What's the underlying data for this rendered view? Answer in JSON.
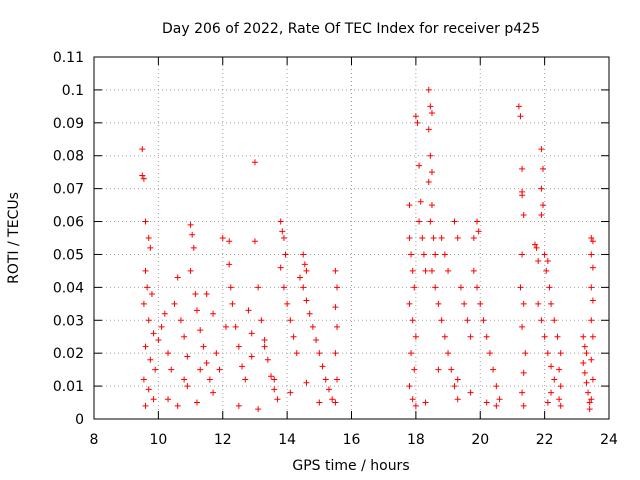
{
  "chart_data": {
    "type": "scatter",
    "title": "Day 206 of 2022, Rate Of TEC Index for receiver p425",
    "xlabel": "GPS time / hours",
    "ylabel": "ROTI / TECUs",
    "xlim": [
      8,
      24
    ],
    "ylim": [
      0,
      0.11
    ],
    "xticks": [
      8,
      10,
      12,
      14,
      16,
      18,
      20,
      22,
      24
    ],
    "xtick_labels": [
      "8",
      "10",
      "12",
      "14",
      "16",
      "18",
      "20",
      "22",
      "24"
    ],
    "yticks": [
      0,
      0.01,
      0.02,
      0.03,
      0.04,
      0.05,
      0.06,
      0.07,
      0.08,
      0.09,
      0.1,
      0.11
    ],
    "ytick_labels": [
      "0",
      "0.01",
      "0.02",
      "0.03",
      "0.04",
      "0.05",
      "0.06",
      "0.07",
      "0.08",
      "0.09",
      "0.1",
      "0.11"
    ],
    "grid": true,
    "marker": "+",
    "series": [
      {
        "name": "ROTI",
        "color": "#ff0000",
        "points": [
          [
            9.5,
            0.082
          ],
          [
            9.5,
            0.074
          ],
          [
            9.55,
            0.073
          ],
          [
            9.6,
            0.06
          ],
          [
            9.7,
            0.055
          ],
          [
            9.75,
            0.052
          ],
          [
            9.6,
            0.045
          ],
          [
            9.65,
            0.04
          ],
          [
            9.8,
            0.038
          ],
          [
            9.55,
            0.035
          ],
          [
            9.7,
            0.03
          ],
          [
            9.85,
            0.026
          ],
          [
            9.6,
            0.022
          ],
          [
            9.75,
            0.018
          ],
          [
            9.9,
            0.015
          ],
          [
            9.55,
            0.012
          ],
          [
            9.7,
            0.009
          ],
          [
            9.85,
            0.006
          ],
          [
            9.6,
            0.004
          ],
          [
            10.0,
            0.024
          ],
          [
            10.1,
            0.028
          ],
          [
            10.2,
            0.032
          ],
          [
            10.3,
            0.02
          ],
          [
            10.4,
            0.015
          ],
          [
            10.5,
            0.035
          ],
          [
            10.6,
            0.043
          ],
          [
            10.7,
            0.03
          ],
          [
            10.8,
            0.025
          ],
          [
            10.9,
            0.019
          ],
          [
            11.0,
            0.059
          ],
          [
            11.05,
            0.056
          ],
          [
            11.1,
            0.052
          ],
          [
            11.0,
            0.045
          ],
          [
            11.15,
            0.038
          ],
          [
            11.2,
            0.033
          ],
          [
            11.3,
            0.027
          ],
          [
            11.4,
            0.022
          ],
          [
            11.5,
            0.017
          ],
          [
            11.6,
            0.012
          ],
          [
            11.7,
            0.008
          ],
          [
            10.3,
            0.006
          ],
          [
            10.6,
            0.004
          ],
          [
            10.9,
            0.01
          ],
          [
            11.2,
            0.005
          ],
          [
            11.5,
            0.038
          ],
          [
            11.7,
            0.032
          ],
          [
            11.8,
            0.02
          ],
          [
            11.9,
            0.015
          ],
          [
            12.0,
            0.055
          ],
          [
            12.1,
            0.028
          ],
          [
            12.2,
            0.054
          ],
          [
            12.2,
            0.047
          ],
          [
            12.25,
            0.04
          ],
          [
            12.3,
            0.035
          ],
          [
            12.4,
            0.028
          ],
          [
            12.5,
            0.022
          ],
          [
            12.6,
            0.016
          ],
          [
            12.7,
            0.012
          ],
          [
            12.8,
            0.033
          ],
          [
            12.9,
            0.026
          ],
          [
            13.0,
            0.078
          ],
          [
            13.0,
            0.054
          ],
          [
            13.1,
            0.04
          ],
          [
            13.2,
            0.03
          ],
          [
            13.3,
            0.024
          ],
          [
            13.4,
            0.018
          ],
          [
            13.5,
            0.013
          ],
          [
            13.6,
            0.009
          ],
          [
            13.7,
            0.006
          ],
          [
            13.8,
            0.06
          ],
          [
            13.85,
            0.057
          ],
          [
            13.9,
            0.055
          ],
          [
            13.95,
            0.05
          ],
          [
            13.8,
            0.046
          ],
          [
            13.9,
            0.04
          ],
          [
            14.0,
            0.035
          ],
          [
            14.1,
            0.03
          ],
          [
            14.2,
            0.025
          ],
          [
            14.3,
            0.02
          ],
          [
            14.4,
            0.043
          ],
          [
            14.5,
            0.05
          ],
          [
            14.55,
            0.047
          ],
          [
            14.6,
            0.045
          ],
          [
            14.5,
            0.04
          ],
          [
            14.6,
            0.036
          ],
          [
            14.7,
            0.032
          ],
          [
            14.8,
            0.028
          ],
          [
            14.9,
            0.024
          ],
          [
            15.0,
            0.02
          ],
          [
            15.1,
            0.016
          ],
          [
            15.2,
            0.012
          ],
          [
            15.3,
            0.009
          ],
          [
            15.4,
            0.006
          ],
          [
            15.5,
            0.045
          ],
          [
            15.55,
            0.04
          ],
          [
            15.5,
            0.034
          ],
          [
            15.55,
            0.028
          ],
          [
            15.5,
            0.02
          ],
          [
            15.55,
            0.012
          ],
          [
            15.5,
            0.005
          ],
          [
            12.5,
            0.004
          ],
          [
            13.1,
            0.003
          ],
          [
            13.6,
            0.012
          ],
          [
            14.1,
            0.008
          ],
          [
            14.6,
            0.011
          ],
          [
            15.0,
            0.005
          ],
          [
            12.9,
            0.019
          ],
          [
            13.3,
            0.022
          ],
          [
            10.8,
            0.012
          ],
          [
            11.3,
            0.015
          ],
          [
            17.8,
            0.065
          ],
          [
            17.8,
            0.055
          ],
          [
            17.85,
            0.05
          ],
          [
            17.9,
            0.045
          ],
          [
            17.95,
            0.04
          ],
          [
            17.8,
            0.035
          ],
          [
            17.9,
            0.03
          ],
          [
            18.0,
            0.025
          ],
          [
            17.85,
            0.02
          ],
          [
            17.95,
            0.015
          ],
          [
            17.8,
            0.01
          ],
          [
            17.9,
            0.006
          ],
          [
            18.0,
            0.092
          ],
          [
            18.05,
            0.09
          ],
          [
            18.1,
            0.077
          ],
          [
            18.15,
            0.066
          ],
          [
            18.1,
            0.06
          ],
          [
            18.2,
            0.055
          ],
          [
            18.25,
            0.05
          ],
          [
            18.3,
            0.045
          ],
          [
            18.4,
            0.1
          ],
          [
            18.45,
            0.095
          ],
          [
            18.5,
            0.093
          ],
          [
            18.4,
            0.088
          ],
          [
            18.45,
            0.08
          ],
          [
            18.5,
            0.075
          ],
          [
            18.4,
            0.072
          ],
          [
            18.5,
            0.065
          ],
          [
            18.45,
            0.06
          ],
          [
            18.55,
            0.055
          ],
          [
            18.6,
            0.05
          ],
          [
            18.5,
            0.045
          ],
          [
            18.6,
            0.04
          ],
          [
            18.7,
            0.035
          ],
          [
            18.8,
            0.03
          ],
          [
            18.9,
            0.025
          ],
          [
            19.0,
            0.02
          ],
          [
            19.1,
            0.015
          ],
          [
            19.2,
            0.01
          ],
          [
            19.3,
            0.006
          ],
          [
            18.8,
            0.055
          ],
          [
            18.9,
            0.05
          ],
          [
            19.0,
            0.045
          ],
          [
            19.2,
            0.06
          ],
          [
            19.3,
            0.055
          ],
          [
            19.4,
            0.04
          ],
          [
            19.5,
            0.035
          ],
          [
            19.6,
            0.03
          ],
          [
            19.7,
            0.025
          ],
          [
            19.8,
            0.055
          ],
          [
            19.9,
            0.06
          ],
          [
            19.95,
            0.057
          ],
          [
            19.8,
            0.045
          ],
          [
            19.9,
            0.04
          ],
          [
            20.0,
            0.035
          ],
          [
            20.1,
            0.03
          ],
          [
            20.2,
            0.025
          ],
          [
            20.3,
            0.02
          ],
          [
            20.4,
            0.015
          ],
          [
            20.5,
            0.01
          ],
          [
            20.6,
            0.006
          ],
          [
            20.5,
            0.004
          ],
          [
            20.2,
            0.005
          ],
          [
            19.7,
            0.008
          ],
          [
            19.3,
            0.012
          ],
          [
            18.7,
            0.015
          ],
          [
            18.3,
            0.005
          ],
          [
            18.0,
            0.004
          ],
          [
            21.2,
            0.095
          ],
          [
            21.25,
            0.092
          ],
          [
            21.3,
            0.076
          ],
          [
            21.3,
            0.069
          ],
          [
            21.3,
            0.068
          ],
          [
            21.35,
            0.062
          ],
          [
            21.3,
            0.05
          ],
          [
            21.25,
            0.04
          ],
          [
            21.35,
            0.035
          ],
          [
            21.3,
            0.028
          ],
          [
            21.4,
            0.02
          ],
          [
            21.35,
            0.014
          ],
          [
            21.3,
            0.008
          ],
          [
            21.35,
            0.004
          ],
          [
            21.7,
            0.053
          ],
          [
            21.75,
            0.052
          ],
          [
            21.8,
            0.048
          ],
          [
            21.9,
            0.082
          ],
          [
            21.95,
            0.076
          ],
          [
            21.9,
            0.07
          ],
          [
            21.95,
            0.065
          ],
          [
            21.9,
            0.062
          ],
          [
            22.0,
            0.05
          ],
          [
            22.05,
            0.045
          ],
          [
            22.1,
            0.048
          ],
          [
            22.15,
            0.04
          ],
          [
            22.2,
            0.035
          ],
          [
            22.3,
            0.03
          ],
          [
            22.4,
            0.025
          ],
          [
            22.5,
            0.02
          ],
          [
            22.45,
            0.015
          ],
          [
            22.5,
            0.01
          ],
          [
            22.45,
            0.006
          ],
          [
            22.5,
            0.004
          ],
          [
            21.8,
            0.035
          ],
          [
            21.9,
            0.03
          ],
          [
            22.0,
            0.025
          ],
          [
            22.1,
            0.02
          ],
          [
            22.2,
            0.016
          ],
          [
            22.3,
            0.012
          ],
          [
            22.2,
            0.008
          ],
          [
            22.1,
            0.005
          ],
          [
            23.2,
            0.025
          ],
          [
            23.25,
            0.022
          ],
          [
            23.3,
            0.02
          ],
          [
            23.2,
            0.017
          ],
          [
            23.25,
            0.014
          ],
          [
            23.3,
            0.011
          ],
          [
            23.35,
            0.008
          ],
          [
            23.4,
            0.005
          ],
          [
            23.45,
            0.055
          ],
          [
            23.5,
            0.054
          ],
          [
            23.45,
            0.05
          ],
          [
            23.5,
            0.046
          ],
          [
            23.45,
            0.04
          ],
          [
            23.5,
            0.036
          ],
          [
            23.45,
            0.03
          ],
          [
            23.5,
            0.025
          ],
          [
            23.45,
            0.018
          ],
          [
            23.5,
            0.012
          ],
          [
            23.45,
            0.006
          ],
          [
            23.4,
            0.003
          ]
        ]
      }
    ]
  }
}
